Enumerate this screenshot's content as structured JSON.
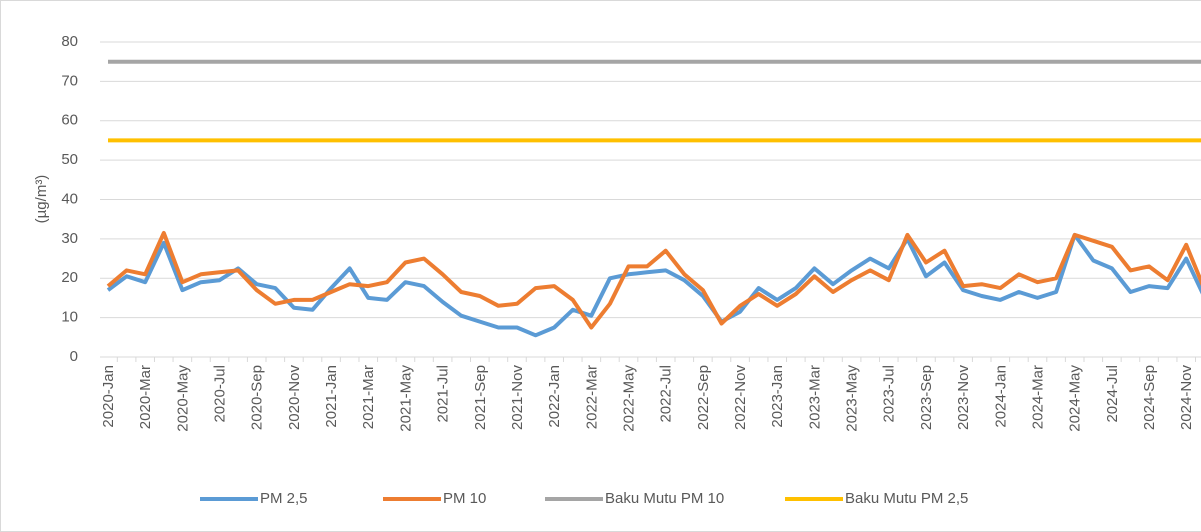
{
  "chart_data": {
    "type": "line",
    "y_label": "(µg/m³)",
    "categories": [
      "2020-Jan",
      null,
      "2020-Mar",
      null,
      "2020-May",
      null,
      "2020-Jul",
      null,
      "2020-Sep",
      null,
      "2020-Nov",
      null,
      "2021-Jan",
      null,
      "2021-Mar",
      null,
      "2021-May",
      null,
      "2021-Jul",
      null,
      "2021-Sep",
      null,
      "2021-Nov",
      null,
      "2022-Jan",
      null,
      "2022-Mar",
      null,
      "2022-May",
      null,
      "2022-Jul",
      null,
      "2022-Sep",
      null,
      "2022-Nov",
      null,
      "2023-Jan",
      null,
      "2023-Mar",
      null,
      "2023-May",
      null,
      "2023-Jul",
      null,
      "2023-Sep",
      null,
      "2023-Nov",
      null,
      "2024-Jan",
      null,
      "2024-Mar",
      null,
      "2024-May",
      null,
      "2024-Jul",
      null,
      "2024-Sep",
      null,
      "2024-Nov",
      null
    ],
    "series": [
      {
        "name": "PM 2,5",
        "color": "#5b9bd5",
        "values": [
          17,
          20.5,
          19,
          29,
          17,
          19,
          19.5,
          22.5,
          18.5,
          17.5,
          12.5,
          12,
          17.5,
          22.5,
          15,
          14.5,
          19,
          18,
          14,
          10.5,
          9,
          7.5,
          7.5,
          5.5,
          7.5,
          12,
          10.5,
          20,
          21,
          21.5,
          22,
          19.5,
          15.5,
          9,
          11.5,
          17.5,
          14.5,
          17.5,
          22.5,
          18.5,
          22,
          25,
          22.5,
          30,
          20.5,
          24,
          17,
          15.5,
          14.5,
          16.5,
          15,
          16.5,
          31,
          24.5,
          22.5,
          16.5,
          18,
          17.5,
          25,
          15
        ]
      },
      {
        "name": "PM 10",
        "color": "#ed7d31",
        "values": [
          18,
          22,
          21,
          31.5,
          19,
          21,
          21.5,
          22,
          17,
          13.5,
          14.5,
          14.5,
          16.5,
          18.5,
          18,
          19,
          24,
          25,
          21,
          16.5,
          15.5,
          13,
          13.5,
          17.5,
          18,
          14.5,
          7.5,
          13.5,
          23,
          23,
          27,
          21,
          17,
          8.5,
          13,
          16,
          13,
          16,
          20.5,
          16.5,
          19.5,
          22,
          19.5,
          31,
          24,
          27,
          18,
          18.5,
          17.5,
          21,
          19,
          20,
          31,
          29.5,
          28,
          22,
          23,
          19.5,
          28.5,
          17
        ]
      },
      {
        "name": "Baku Mutu PM 10",
        "color": "#a5a5a5",
        "values": [
          75,
          75,
          75,
          75,
          75,
          75,
          75,
          75,
          75,
          75,
          75,
          75,
          75,
          75,
          75,
          75,
          75,
          75,
          75,
          75,
          75,
          75,
          75,
          75,
          75,
          75,
          75,
          75,
          75,
          75,
          75,
          75,
          75,
          75,
          75,
          75,
          75,
          75,
          75,
          75,
          75,
          75,
          75,
          75,
          75,
          75,
          75,
          75,
          75,
          75,
          75,
          75,
          75,
          75,
          75,
          75,
          75,
          75,
          75,
          75
        ]
      },
      {
        "name": "Baku Mutu PM 2,5",
        "color": "#ffc000",
        "values": [
          55,
          55,
          55,
          55,
          55,
          55,
          55,
          55,
          55,
          55,
          55,
          55,
          55,
          55,
          55,
          55,
          55,
          55,
          55,
          55,
          55,
          55,
          55,
          55,
          55,
          55,
          55,
          55,
          55,
          55,
          55,
          55,
          55,
          55,
          55,
          55,
          55,
          55,
          55,
          55,
          55,
          55,
          55,
          55,
          55,
          55,
          55,
          55,
          55,
          55,
          55,
          55,
          55,
          55,
          55,
          55,
          55,
          55,
          55,
          55
        ]
      }
    ],
    "ylim": [
      0,
      80
    ],
    "yticks": [
      0,
      10,
      20,
      30,
      40,
      50,
      60,
      70,
      80
    ],
    "grid": true,
    "legend": "bottom"
  }
}
